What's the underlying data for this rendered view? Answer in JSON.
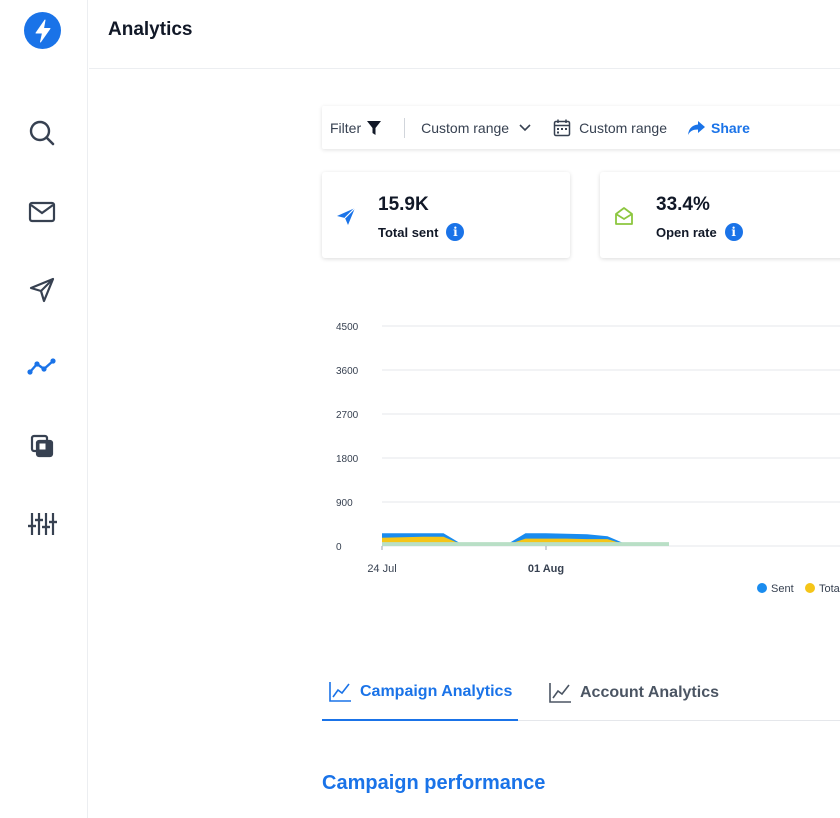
{
  "header": {
    "title": "Analytics"
  },
  "sidebar": {
    "items": [
      {
        "icon": "search-icon"
      },
      {
        "icon": "mail-icon"
      },
      {
        "icon": "send-icon"
      },
      {
        "icon": "analytics-icon",
        "active": true
      },
      {
        "icon": "templates-icon"
      },
      {
        "icon": "settings-sliders-icon"
      }
    ]
  },
  "toolbar": {
    "filter_label": "Filter",
    "range_select_label": "Custom range",
    "date_range_label": "Custom range",
    "share_label": "Share"
  },
  "stats": [
    {
      "value": "15.9K",
      "label": "Total sent",
      "icon": "paper-plane-icon",
      "color": "#1a73e8"
    },
    {
      "value": "33.4%",
      "label": "Open rate",
      "icon": "open-envelope-icon",
      "color": "#8cc63f"
    }
  ],
  "chart_data": {
    "type": "area",
    "y_ticks": [
      "4500",
      "3600",
      "2700",
      "1800",
      "900",
      "0"
    ],
    "ylim": [
      0,
      4500
    ],
    "x_ticks": [
      {
        "label": "24 Jul",
        "pos": 0,
        "bold": false
      },
      {
        "label": "01 Aug",
        "pos": 8,
        "bold": true
      }
    ],
    "x": [
      0,
      1,
      2,
      3,
      4,
      5,
      6,
      7,
      8,
      9,
      10,
      11,
      12,
      13,
      14
    ],
    "series": [
      {
        "name": "Sent",
        "color": "#1a8cef",
        "values": [
          260,
          260,
          260,
          260,
          10,
          10,
          10,
          260,
          260,
          250,
          240,
          200,
          20,
          20,
          20
        ]
      },
      {
        "name": "Total",
        "color": "#f5c518",
        "values": [
          170,
          180,
          190,
          190,
          10,
          10,
          10,
          150,
          150,
          150,
          140,
          140,
          10,
          10,
          10
        ]
      },
      {
        "name": "",
        "color": "#b9dfc6",
        "values": [
          80,
          80,
          80,
          80,
          80,
          80,
          80,
          80,
          80,
          80,
          80,
          80,
          80,
          80,
          80
        ]
      }
    ],
    "legend": [
      {
        "name": "Sent",
        "color": "#1a8cef"
      },
      {
        "name": "Tota",
        "color": "#f5c518"
      }
    ],
    "legend_position": "bottom-right",
    "grid": true
  },
  "tabs": [
    {
      "label": "Campaign Analytics",
      "active": true
    },
    {
      "label": "Account Analytics",
      "active": false
    }
  ],
  "section": {
    "title": "Campaign performance"
  }
}
